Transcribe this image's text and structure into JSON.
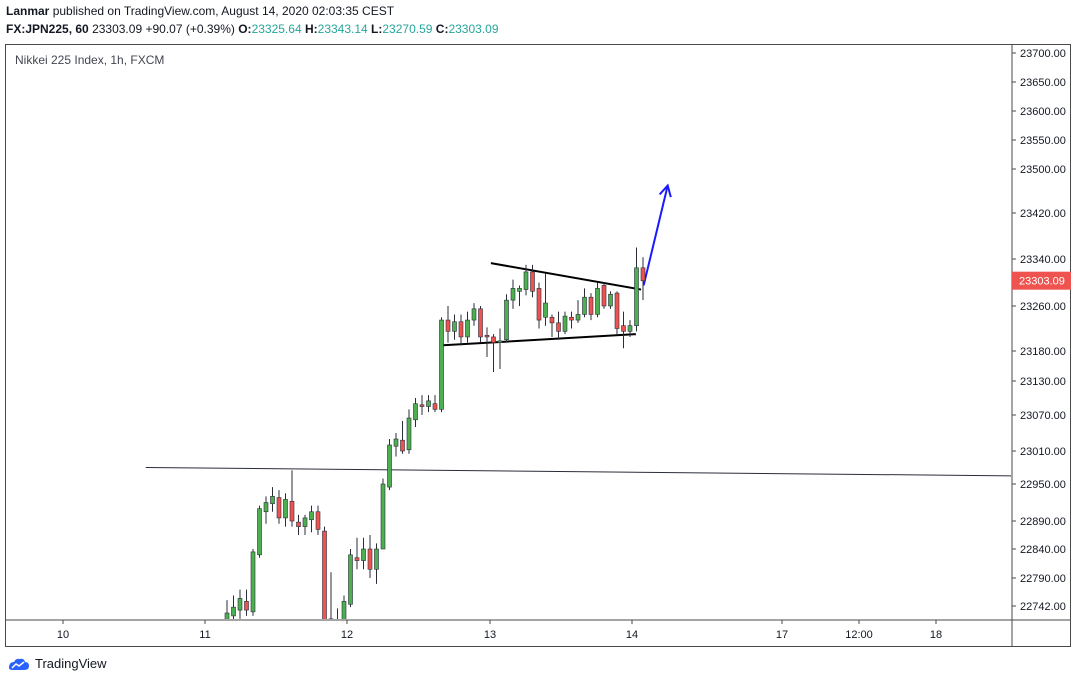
{
  "header": {
    "author": "Lanmar",
    "published_text": "published on TradingView.com, August 14, 2020 02:03:35 CEST",
    "symbol": "FX:JPN225, 60",
    "last": "23303.09",
    "change": "+90.07 (+0.39%)",
    "o_label": "O:",
    "o": "23325.64",
    "h_label": "H:",
    "h": "23343.14",
    "l_label": "L:",
    "l": "23270.59",
    "c_label": "C:",
    "c": "23303.09"
  },
  "chart_title": "Nikkei 225 Index, 1h, FXCM",
  "footer": {
    "brand": "TradingView"
  },
  "colors": {
    "up": "#26a69a",
    "up_fill": "#4caf50",
    "down": "#ef5350",
    "price_tag": "#ef5350",
    "arrow": "#1a1aff"
  },
  "chart_data": {
    "type": "candlestick",
    "price_axis_ticks": [
      "23700.00",
      "23650.00",
      "23600.00",
      "23550.00",
      "23500.00",
      "23420.00",
      "23340.00",
      "23260.00",
      "23180.00",
      "23130.00",
      "23070.00",
      "23010.00",
      "22950.00",
      "22890.00",
      "22840.00",
      "22790.00",
      "22742.00"
    ],
    "time_axis_ticks": [
      "10",
      "11",
      "12",
      "13",
      "14",
      "17",
      "12:00",
      "18"
    ],
    "last_price_tag": "23303.09",
    "candles": [
      {
        "o": 22700,
        "h": 22752,
        "l": 22690,
        "c": 22730
      },
      {
        "o": 22725,
        "h": 22760,
        "l": 22705,
        "c": 22740
      },
      {
        "o": 22735,
        "h": 22770,
        "l": 22720,
        "c": 22755
      },
      {
        "o": 22750,
        "h": 22770,
        "l": 22725,
        "c": 22735
      },
      {
        "o": 22732,
        "h": 22840,
        "l": 22725,
        "c": 22835
      },
      {
        "o": 22830,
        "h": 22915,
        "l": 22825,
        "c": 22910
      },
      {
        "o": 22905,
        "h": 22930,
        "l": 22885,
        "c": 22920
      },
      {
        "o": 22918,
        "h": 22945,
        "l": 22905,
        "c": 22930
      },
      {
        "o": 22928,
        "h": 22940,
        "l": 22885,
        "c": 22895
      },
      {
        "o": 22895,
        "h": 22935,
        "l": 22880,
        "c": 22925
      },
      {
        "o": 22922,
        "h": 22975,
        "l": 22880,
        "c": 22890
      },
      {
        "o": 22888,
        "h": 22900,
        "l": 22865,
        "c": 22880
      },
      {
        "o": 22880,
        "h": 22900,
        "l": 22865,
        "c": 22895
      },
      {
        "o": 22892,
        "h": 22915,
        "l": 22870,
        "c": 22905
      },
      {
        "o": 22905,
        "h": 22915,
        "l": 22865,
        "c": 22875
      },
      {
        "o": 22872,
        "h": 22880,
        "l": 22600,
        "c": 22610
      },
      {
        "o": 22640,
        "h": 22800,
        "l": 22630,
        "c": 22720
      },
      {
        "o": 22718,
        "h": 22738,
        "l": 22690,
        "c": 22700
      },
      {
        "o": 22700,
        "h": 22760,
        "l": 22690,
        "c": 22750
      },
      {
        "o": 22745,
        "h": 22840,
        "l": 22740,
        "c": 22830
      },
      {
        "o": 22825,
        "h": 22860,
        "l": 22805,
        "c": 22820
      },
      {
        "o": 22820,
        "h": 22860,
        "l": 22805,
        "c": 22840
      },
      {
        "o": 22840,
        "h": 22865,
        "l": 22790,
        "c": 22805
      },
      {
        "o": 22805,
        "h": 22850,
        "l": 22780,
        "c": 22840
      },
      {
        "o": 22840,
        "h": 22960,
        "l": 22840,
        "c": 22950
      },
      {
        "o": 22945,
        "h": 23030,
        "l": 22940,
        "c": 23020
      },
      {
        "o": 23018,
        "h": 23040,
        "l": 23000,
        "c": 23030
      },
      {
        "o": 23028,
        "h": 23060,
        "l": 23005,
        "c": 23010
      },
      {
        "o": 23012,
        "h": 23080,
        "l": 23005,
        "c": 23065
      },
      {
        "o": 23062,
        "h": 23100,
        "l": 23050,
        "c": 23090
      },
      {
        "o": 23088,
        "h": 23105,
        "l": 23070,
        "c": 23085
      },
      {
        "o": 23085,
        "h": 23105,
        "l": 23075,
        "c": 23095
      },
      {
        "o": 23090,
        "h": 23105,
        "l": 23075,
        "c": 23080
      },
      {
        "o": 23080,
        "h": 23240,
        "l": 23075,
        "c": 23235
      },
      {
        "o": 23235,
        "h": 23260,
        "l": 23195,
        "c": 23215
      },
      {
        "o": 23215,
        "h": 23245,
        "l": 23200,
        "c": 23232
      },
      {
        "o": 23232,
        "h": 23245,
        "l": 23190,
        "c": 23205
      },
      {
        "o": 23205,
        "h": 23250,
        "l": 23195,
        "c": 23235
      },
      {
        "o": 23235,
        "h": 23265,
        "l": 23225,
        "c": 23255
      },
      {
        "o": 23255,
        "h": 23260,
        "l": 23195,
        "c": 23205
      },
      {
        "o": 23208,
        "h": 23222,
        "l": 23170,
        "c": 23205
      },
      {
        "o": 23205,
        "h": 23210,
        "l": 23145,
        "c": 23195
      },
      {
        "o": 23195,
        "h": 23220,
        "l": 23150,
        "c": 23198
      },
      {
        "o": 23200,
        "h": 23280,
        "l": 23195,
        "c": 23270
      },
      {
        "o": 23270,
        "h": 23305,
        "l": 23255,
        "c": 23290
      },
      {
        "o": 23285,
        "h": 23295,
        "l": 23260,
        "c": 23290
      },
      {
        "o": 23288,
        "h": 23330,
        "l": 23278,
        "c": 23318
      },
      {
        "o": 23318,
        "h": 23330,
        "l": 23275,
        "c": 23285
      },
      {
        "o": 23290,
        "h": 23300,
        "l": 23220,
        "c": 23235
      },
      {
        "o": 23240,
        "h": 23315,
        "l": 23225,
        "c": 23265
      },
      {
        "o": 23240,
        "h": 23245,
        "l": 23205,
        "c": 23230
      },
      {
        "o": 23230,
        "h": 23250,
        "l": 23200,
        "c": 23215
      },
      {
        "o": 23215,
        "h": 23250,
        "l": 23210,
        "c": 23242
      },
      {
        "o": 23240,
        "h": 23250,
        "l": 23220,
        "c": 23235
      },
      {
        "o": 23235,
        "h": 23270,
        "l": 23230,
        "c": 23245
      },
      {
        "o": 23245,
        "h": 23290,
        "l": 23240,
        "c": 23275
      },
      {
        "o": 23275,
        "h": 23282,
        "l": 23235,
        "c": 23245
      },
      {
        "o": 23245,
        "h": 23300,
        "l": 23240,
        "c": 23290
      },
      {
        "o": 23295,
        "h": 23300,
        "l": 23255,
        "c": 23260
      },
      {
        "o": 23260,
        "h": 23285,
        "l": 23255,
        "c": 23280
      },
      {
        "o": 23282,
        "h": 23285,
        "l": 23210,
        "c": 23220
      },
      {
        "o": 23225,
        "h": 23250,
        "l": 23185,
        "c": 23215
      },
      {
        "o": 23215,
        "h": 23235,
        "l": 23205,
        "c": 23225
      },
      {
        "o": 23225,
        "h": 23360,
        "l": 23215,
        "c": 23325
      },
      {
        "o": 23325,
        "h": 23343,
        "l": 23270,
        "c": 23303
      }
    ],
    "trendlines": [
      {
        "name": "support-line-long",
        "from": {
          "i": -12.5,
          "p": 22980
        },
        "to": {
          "i": 189,
          "p": 22957
        }
      },
      {
        "name": "triangle-upper",
        "from": {
          "i": 40.6,
          "p": 23333
        },
        "to": {
          "i": 63.7,
          "p": 23288
        }
      },
      {
        "name": "triangle-lower",
        "from": {
          "i": 32.9,
          "p": 23190
        },
        "to": {
          "i": 62.9,
          "p": 23210
        }
      }
    ],
    "arrow": {
      "from": {
        "i": 64.1,
        "p": 23295
      },
      "to": {
        "i": 67.8,
        "p": 23470
      }
    }
  }
}
